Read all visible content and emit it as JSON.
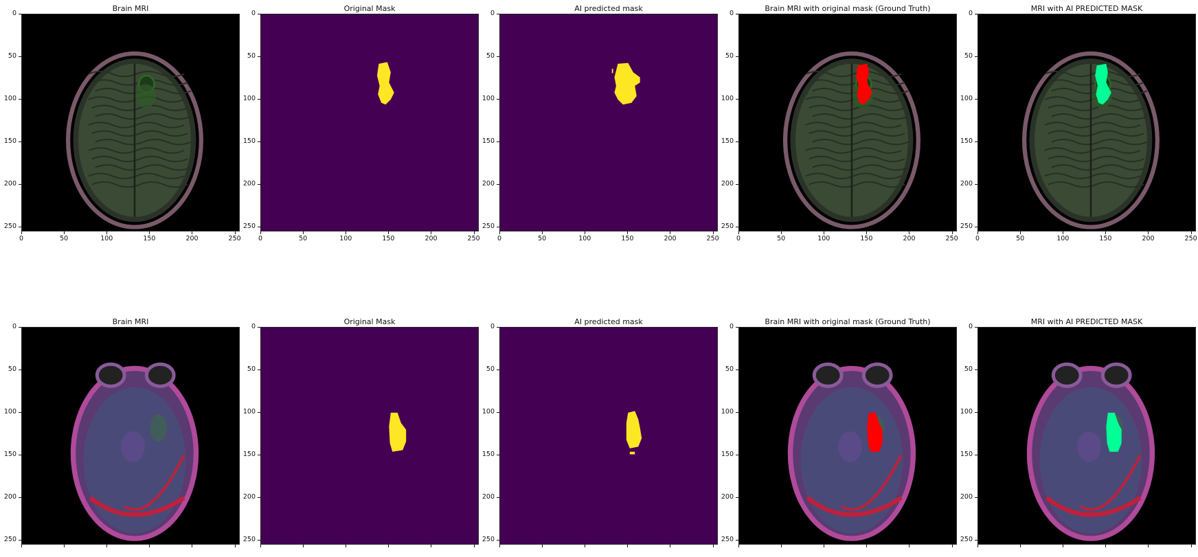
{
  "panel_titles": {
    "brain_mri": "Brain MRI",
    "original_mask": "Original Mask",
    "ai_predicted_mask": "AI predicted mask",
    "ground_truth_overlay": "Brain MRI with original mask (Ground Truth)",
    "ai_overlay": "MRI with AI PREDICTED MASK"
  },
  "axis_ticks": {
    "x": [
      "0",
      "50",
      "100",
      "150",
      "200",
      "250"
    ],
    "y": [
      "0",
      "50",
      "100",
      "150",
      "200",
      "250"
    ]
  },
  "colors": {
    "mask_background": "#440154",
    "mask_foreground": "#fde725",
    "ground_truth_overlay": "#ff0000",
    "ai_overlay": "#00ff96",
    "mri_background": "#000000"
  },
  "rows": [
    {
      "row": "top",
      "panels": [
        "brain_mri",
        "original_mask",
        "ai_predicted_mask",
        "ground_truth_overlay",
        "ai_overlay"
      ]
    },
    {
      "row": "bottom",
      "panels": [
        "brain_mri",
        "original_mask",
        "ai_predicted_mask",
        "ground_truth_overlay",
        "ai_overlay"
      ]
    }
  ]
}
